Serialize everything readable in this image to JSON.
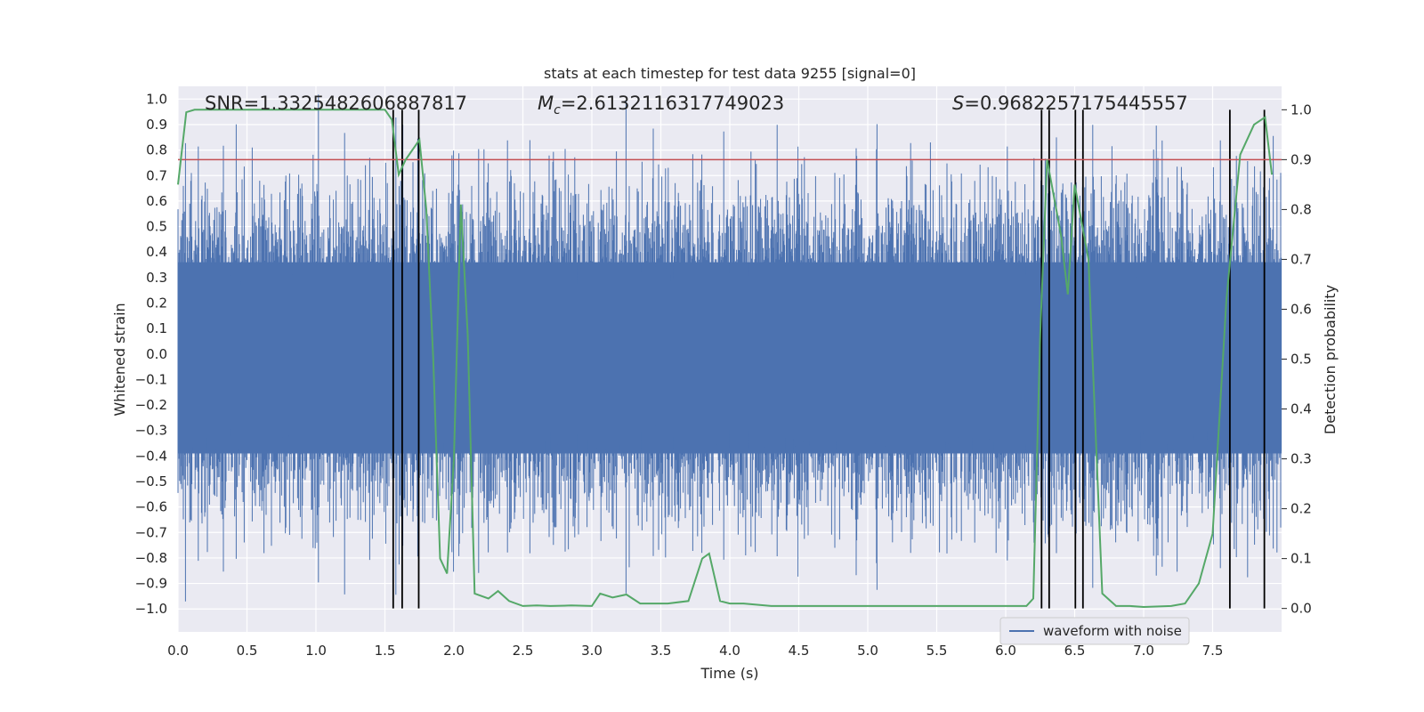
{
  "chart_data": {
    "type": "line",
    "title": "stats at each timestep for test data 9255 [signal=0]",
    "xlabel": "Time (s)",
    "ylabel_left": "Whitened strain",
    "ylabel_right": "Detection probability",
    "xlim": [
      0.0,
      8.0
    ],
    "ylim_left": [
      -1.09,
      1.05
    ],
    "ylim_right": [
      -0.047,
      1.047
    ],
    "x_ticks": [
      "0.0",
      "0.5",
      "1.0",
      "1.5",
      "2.0",
      "2.5",
      "3.0",
      "3.5",
      "4.0",
      "4.5",
      "5.0",
      "5.5",
      "6.0",
      "6.5",
      "7.0",
      "7.5"
    ],
    "y_ticks_left": [
      "-1.0",
      "-0.9",
      "-0.8",
      "-0.7",
      "-0.6",
      "-0.5",
      "-0.4",
      "-0.3",
      "-0.2",
      "-0.1",
      "0.0",
      "0.1",
      "0.2",
      "0.3",
      "0.4",
      "0.5",
      "0.6",
      "0.7",
      "0.8",
      "0.9",
      "1.0"
    ],
    "y_ticks_right": [
      "0.0",
      "0.1",
      "0.2",
      "0.3",
      "0.4",
      "0.5",
      "0.6",
      "0.7",
      "0.8",
      "0.9",
      "1.0"
    ],
    "grid": true,
    "legend_position": "lower-right",
    "annotations": {
      "snr": "SNR=1.3325482606887817",
      "mc_symbol": "M",
      "mc_sub": "c",
      "mc_value": "=2.6132116317749023",
      "s_symbol": "S",
      "s_value": "=0.9682257175445557"
    },
    "threshold": {
      "value": 0.9,
      "axis": "right",
      "color": "#c44e52"
    },
    "vertical_lines_x": [
      1.56,
      1.625,
      1.745,
      6.26,
      6.315,
      6.505,
      6.56,
      7.625,
      7.875
    ],
    "series": [
      {
        "name": "waveform with noise",
        "axis": "left",
        "color": "#4c72b0",
        "render": "dense-noise",
        "envelope_typical": 0.55,
        "envelope_peak": 0.95
      },
      {
        "axis": "right",
        "color": "#55a868",
        "x": [
          0.0,
          0.06,
          0.12,
          0.2,
          0.4,
          0.6,
          0.8,
          1.0,
          1.2,
          1.4,
          1.5,
          1.55,
          1.6,
          1.65,
          1.75,
          1.8,
          1.85,
          1.9,
          1.95,
          2.0,
          2.05,
          2.1,
          2.15,
          2.25,
          2.32,
          2.4,
          2.5,
          2.6,
          2.7,
          2.85,
          3.0,
          3.06,
          3.15,
          3.25,
          3.35,
          3.45,
          3.55,
          3.7,
          3.8,
          3.85,
          3.93,
          4.0,
          4.1,
          4.3,
          4.6,
          4.9,
          5.2,
          5.5,
          5.8,
          6.0,
          6.15,
          6.2,
          6.25,
          6.3,
          6.4,
          6.45,
          6.5,
          6.6,
          6.7,
          6.8,
          6.9,
          7.0,
          7.2,
          7.3,
          7.4,
          7.5,
          7.6,
          7.7,
          7.8,
          7.88,
          7.93
        ],
        "values": [
          0.85,
          0.995,
          1.0,
          1.0,
          1.0,
          1.0,
          1.0,
          1.0,
          1.0,
          1.0,
          1.0,
          0.98,
          0.87,
          0.9,
          0.94,
          0.8,
          0.5,
          0.1,
          0.07,
          0.3,
          0.81,
          0.55,
          0.03,
          0.02,
          0.035,
          0.015,
          0.005,
          0.006,
          0.005,
          0.006,
          0.005,
          0.03,
          0.022,
          0.028,
          0.01,
          0.01,
          0.01,
          0.015,
          0.1,
          0.11,
          0.015,
          0.01,
          0.01,
          0.005,
          0.005,
          0.005,
          0.005,
          0.005,
          0.005,
          0.005,
          0.005,
          0.02,
          0.55,
          0.9,
          0.75,
          0.63,
          0.85,
          0.7,
          0.03,
          0.005,
          0.005,
          0.003,
          0.005,
          0.01,
          0.05,
          0.15,
          0.62,
          0.91,
          0.97,
          0.985,
          0.87
        ]
      }
    ]
  }
}
